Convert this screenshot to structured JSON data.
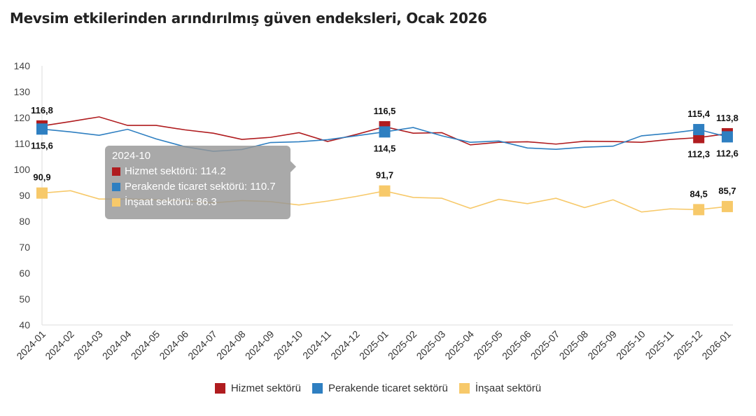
{
  "chart_data": {
    "type": "line",
    "title": "Mevsim etkilerinden arındırılmış güven endeksleri, Ocak 2026",
    "categories": [
      "2024-01",
      "2024-02",
      "2024-03",
      "2024-04",
      "2024-05",
      "2024-06",
      "2024-07",
      "2024-08",
      "2024-09",
      "2024-10",
      "2024-11",
      "2024-12",
      "2025-01",
      "2025-02",
      "2025-03",
      "2025-04",
      "2025-05",
      "2025-06",
      "2025-07",
      "2025-08",
      "2025-09",
      "2025-10",
      "2025-11",
      "2025-12",
      "2026-01"
    ],
    "ylim": [
      40,
      140
    ],
    "yticks": [
      40,
      50,
      60,
      70,
      80,
      90,
      100,
      110,
      120,
      130,
      140
    ],
    "legend": "bottom",
    "series": [
      {
        "name": "Hizmet sektörü",
        "color": "#b01c1f",
        "values": [
          116.8,
          118.5,
          120.3,
          117,
          117,
          115.3,
          114,
          111.6,
          112.4,
          114.2,
          110.8,
          113.5,
          116.5,
          114,
          114.2,
          109.5,
          110.5,
          110.7,
          109.8,
          110.9,
          110.8,
          110.5,
          111.6,
          112.3,
          113.8
        ],
        "labels": {
          "0": "116,8",
          "12": "116,5",
          "23": "112,3",
          "24": "113,8"
        }
      },
      {
        "name": "Perakende ticaret sektörü",
        "color": "#2e7fc1",
        "values": [
          115.6,
          114.5,
          113.2,
          115.5,
          111.8,
          108.8,
          107,
          107.7,
          110.4,
          110.7,
          111.5,
          113,
          114.5,
          116.2,
          113,
          110.5,
          111,
          108.3,
          107.8,
          108.6,
          109,
          113,
          114,
          115.4,
          112.6
        ],
        "labels": {
          "0": "115,6",
          "12": "114,5",
          "23": "115,4",
          "24": "112,6"
        }
      },
      {
        "name": "İnşaat sektörü",
        "color": "#f7c96a",
        "values": [
          90.9,
          91.8,
          88.6,
          88.6,
          88.3,
          87.9,
          87.1,
          88,
          87.6,
          86.3,
          87.8,
          89.6,
          91.7,
          89.2,
          88.9,
          85,
          88.5,
          86.8,
          88.9,
          85.3,
          88.3,
          83.6,
          84.8,
          84.5,
          85.7
        ],
        "labels": {
          "0": "90,9",
          "12": "91,7",
          "23": "84,5",
          "24": "85,7"
        }
      }
    ]
  },
  "tooltip": {
    "header": "2024-10",
    "rows": [
      "Hizmet sektörü: 114.2",
      "Perakende ticaret sektörü: 110.7",
      "İnşaat sektörü: 86.3"
    ]
  }
}
